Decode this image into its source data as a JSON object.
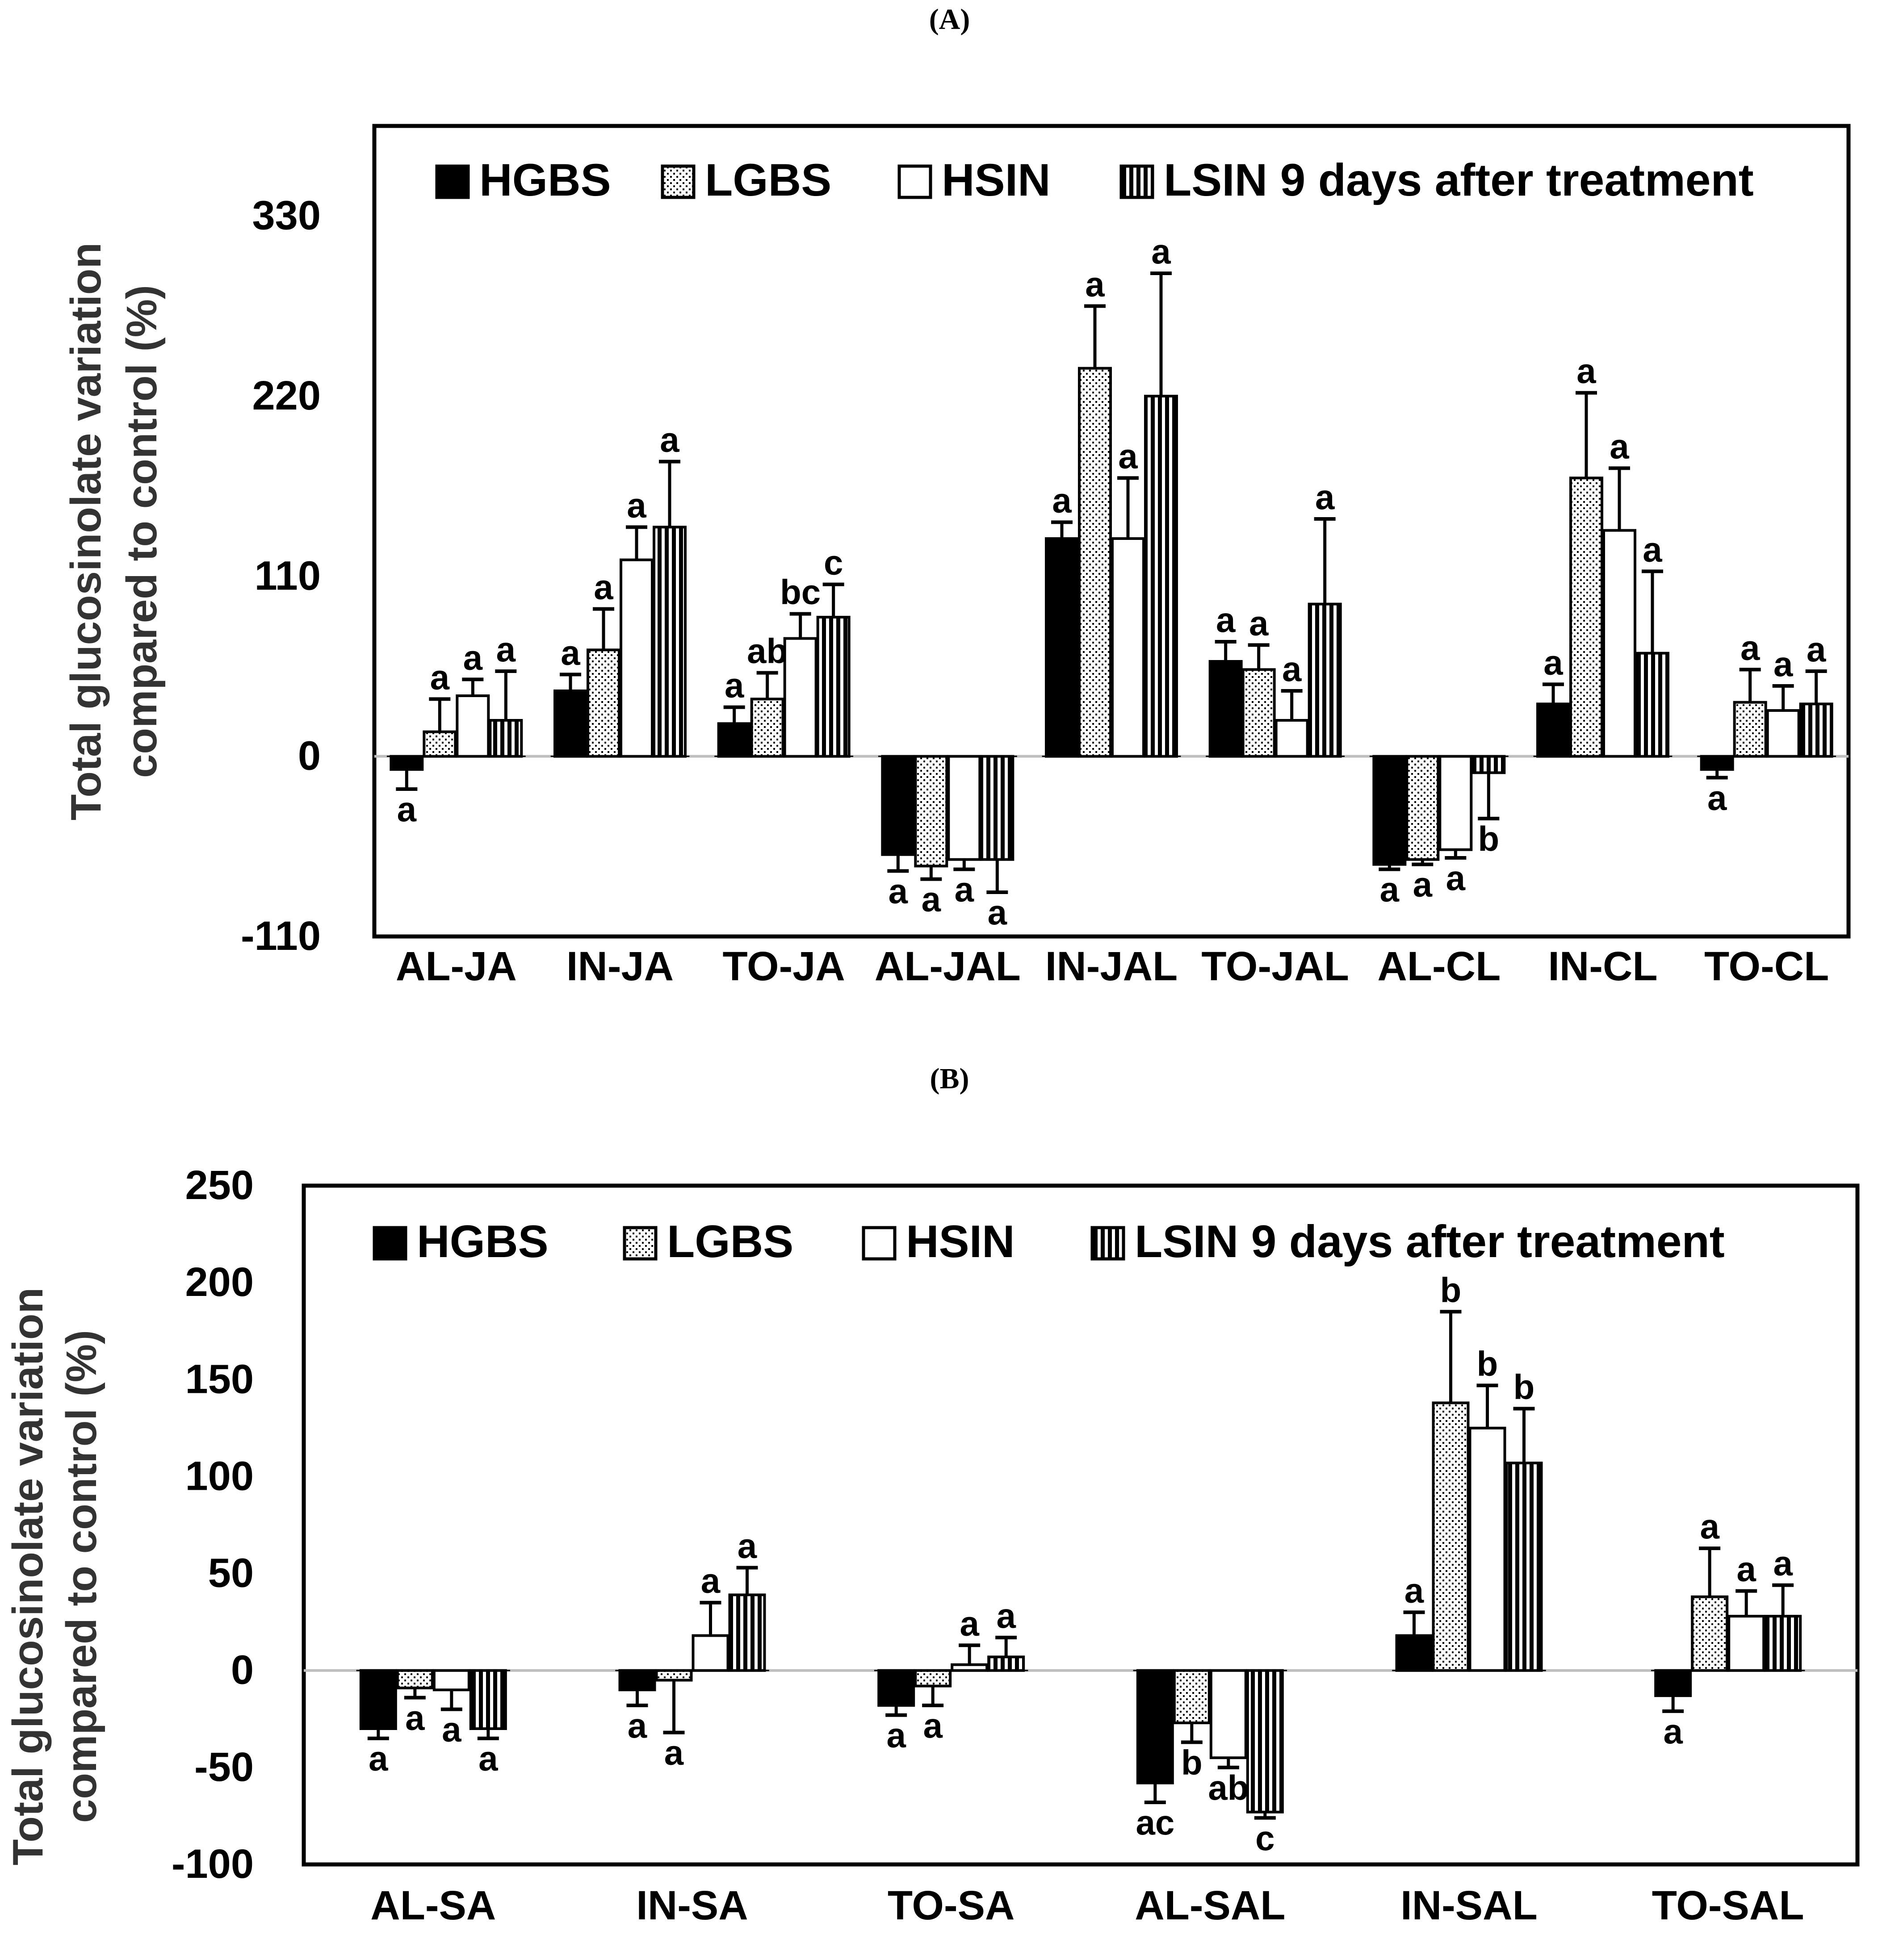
{
  "chart_data": [
    {
      "type": "bar",
      "panel_label": "(A)",
      "title": "",
      "ylabel_line1": "Total glucosinolate variation",
      "ylabel_line2": "compared to control (%)",
      "xlabel": "",
      "ylim": [
        -110,
        385
      ],
      "yticks": [
        -110,
        0,
        110,
        220,
        330
      ],
      "grid": false,
      "legend_position": "top",
      "legend": [
        "HGBS",
        "LGBS",
        "HSIN",
        "LSIN 9 days after treatment"
      ],
      "categories": [
        "AL-JA",
        "IN-JA",
        "TO-JA",
        "AL-JAL",
        "IN-JAL",
        "TO-JAL",
        "AL-CL",
        "IN-CL",
        "TO-CL"
      ],
      "series": [
        {
          "name": "HGBS",
          "pattern": "solid",
          "values": [
            -8,
            40,
            20,
            -60,
            133,
            58,
            -66,
            32,
            -8
          ],
          "errors": [
            12,
            10,
            10,
            10,
            10,
            12,
            3,
            12,
            5
          ],
          "sig": [
            "a",
            "a",
            "a",
            "a",
            "a",
            "a",
            "a",
            "a",
            "a"
          ]
        },
        {
          "name": "LGBS",
          "pattern": "dotted",
          "values": [
            15,
            65,
            35,
            -67,
            237,
            53,
            -63,
            170,
            33
          ],
          "errors": [
            20,
            25,
            16,
            8,
            38,
            15,
            3,
            52,
            20
          ],
          "sig": [
            "a",
            "a",
            "ab",
            "a",
            "a",
            "a",
            "a",
            "a",
            "a"
          ]
        },
        {
          "name": "HSIN",
          "pattern": "open",
          "values": [
            37,
            120,
            72,
            -63,
            133,
            22,
            -57,
            138,
            28
          ],
          "errors": [
            10,
            20,
            15,
            6,
            37,
            18,
            5,
            38,
            15
          ],
          "sig": [
            "a",
            "a",
            "bc",
            "a",
            "a",
            "a",
            "a",
            "a",
            "a"
          ]
        },
        {
          "name": "LSIN 9 days after treatment",
          "pattern": "vertical",
          "values": [
            22,
            140,
            85,
            -63,
            220,
            93,
            -10,
            63,
            32
          ],
          "errors": [
            30,
            40,
            20,
            20,
            75,
            52,
            28,
            50,
            20
          ],
          "sig": [
            "a",
            "a",
            "c",
            "a",
            "a",
            "a",
            "b",
            "a",
            "a"
          ]
        }
      ]
    },
    {
      "type": "bar",
      "panel_label": "(B)",
      "title": "",
      "ylabel_line1": "Total glucosinolate variation",
      "ylabel_line2": "compared to control (%)",
      "xlabel": "",
      "ylim": [
        -100,
        250
      ],
      "yticks": [
        -100,
        -50,
        0,
        50,
        100,
        150,
        200,
        250
      ],
      "grid": false,
      "legend_position": "top",
      "legend": [
        "HGBS",
        "LGBS",
        "HSIN",
        "LSIN 9 days after treatment"
      ],
      "categories": [
        "AL-SA",
        "IN-SA",
        "TO-SA",
        "AL-SAL",
        "IN-SAL",
        "TO-SAL"
      ],
      "series": [
        {
          "name": "HGBS",
          "pattern": "solid",
          "values": [
            -30,
            -10,
            -18,
            -58,
            18,
            -13
          ],
          "errors": [
            5,
            8,
            5,
            10,
            12,
            8
          ],
          "sig": [
            "a",
            "a",
            "a",
            "ac",
            "a",
            "a"
          ]
        },
        {
          "name": "LGBS",
          "pattern": "dotted",
          "values": [
            -9,
            -5,
            -8,
            -27,
            138,
            38
          ],
          "errors": [
            5,
            27,
            10,
            10,
            47,
            25
          ],
          "sig": [
            "a",
            "a",
            "a",
            "b",
            "b",
            "a"
          ]
        },
        {
          "name": "HSIN",
          "pattern": "open",
          "values": [
            -10,
            18,
            3,
            -45,
            125,
            28
          ],
          "errors": [
            10,
            17,
            10,
            5,
            22,
            13
          ],
          "sig": [
            "a",
            "a",
            "a",
            "ab",
            "b",
            "a"
          ]
        },
        {
          "name": "LSIN 9 days after treatment",
          "pattern": "vertical",
          "values": [
            -30,
            39,
            7,
            -73,
            107,
            28
          ],
          "errors": [
            5,
            14,
            10,
            3,
            28,
            16
          ],
          "sig": [
            "a",
            "a",
            "a",
            "c",
            "b",
            "a"
          ]
        }
      ]
    }
  ]
}
